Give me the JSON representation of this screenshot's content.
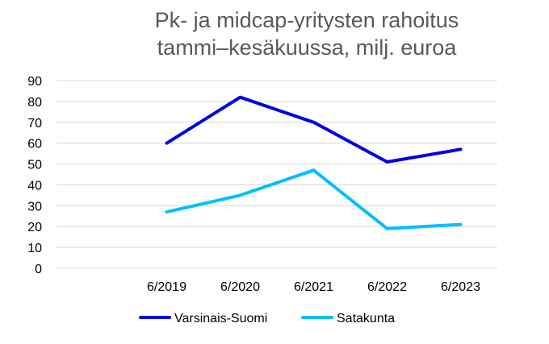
{
  "chart_data": {
    "type": "line",
    "title_lines": [
      "Pk- ja midcap-yritysten rahoitus",
      "tammi–kesäkuussa, milj. euroa"
    ],
    "categories": [
      "",
      "6/2019",
      "6/2020",
      "6/2021",
      "6/2022",
      "6/2023"
    ],
    "ylim": [
      0,
      90
    ],
    "yticks": [
      0,
      10,
      20,
      30,
      40,
      50,
      60,
      70,
      80,
      90
    ],
    "grid": true,
    "legend_position": "bottom",
    "series": [
      {
        "name": "Varsinais-Suomi",
        "color": "#0000e6",
        "values": [
          null,
          60,
          82,
          70,
          51,
          57
        ]
      },
      {
        "name": "Satakunta",
        "color": "#00bfff",
        "values": [
          null,
          27,
          35,
          47,
          19,
          21
        ]
      }
    ]
  }
}
